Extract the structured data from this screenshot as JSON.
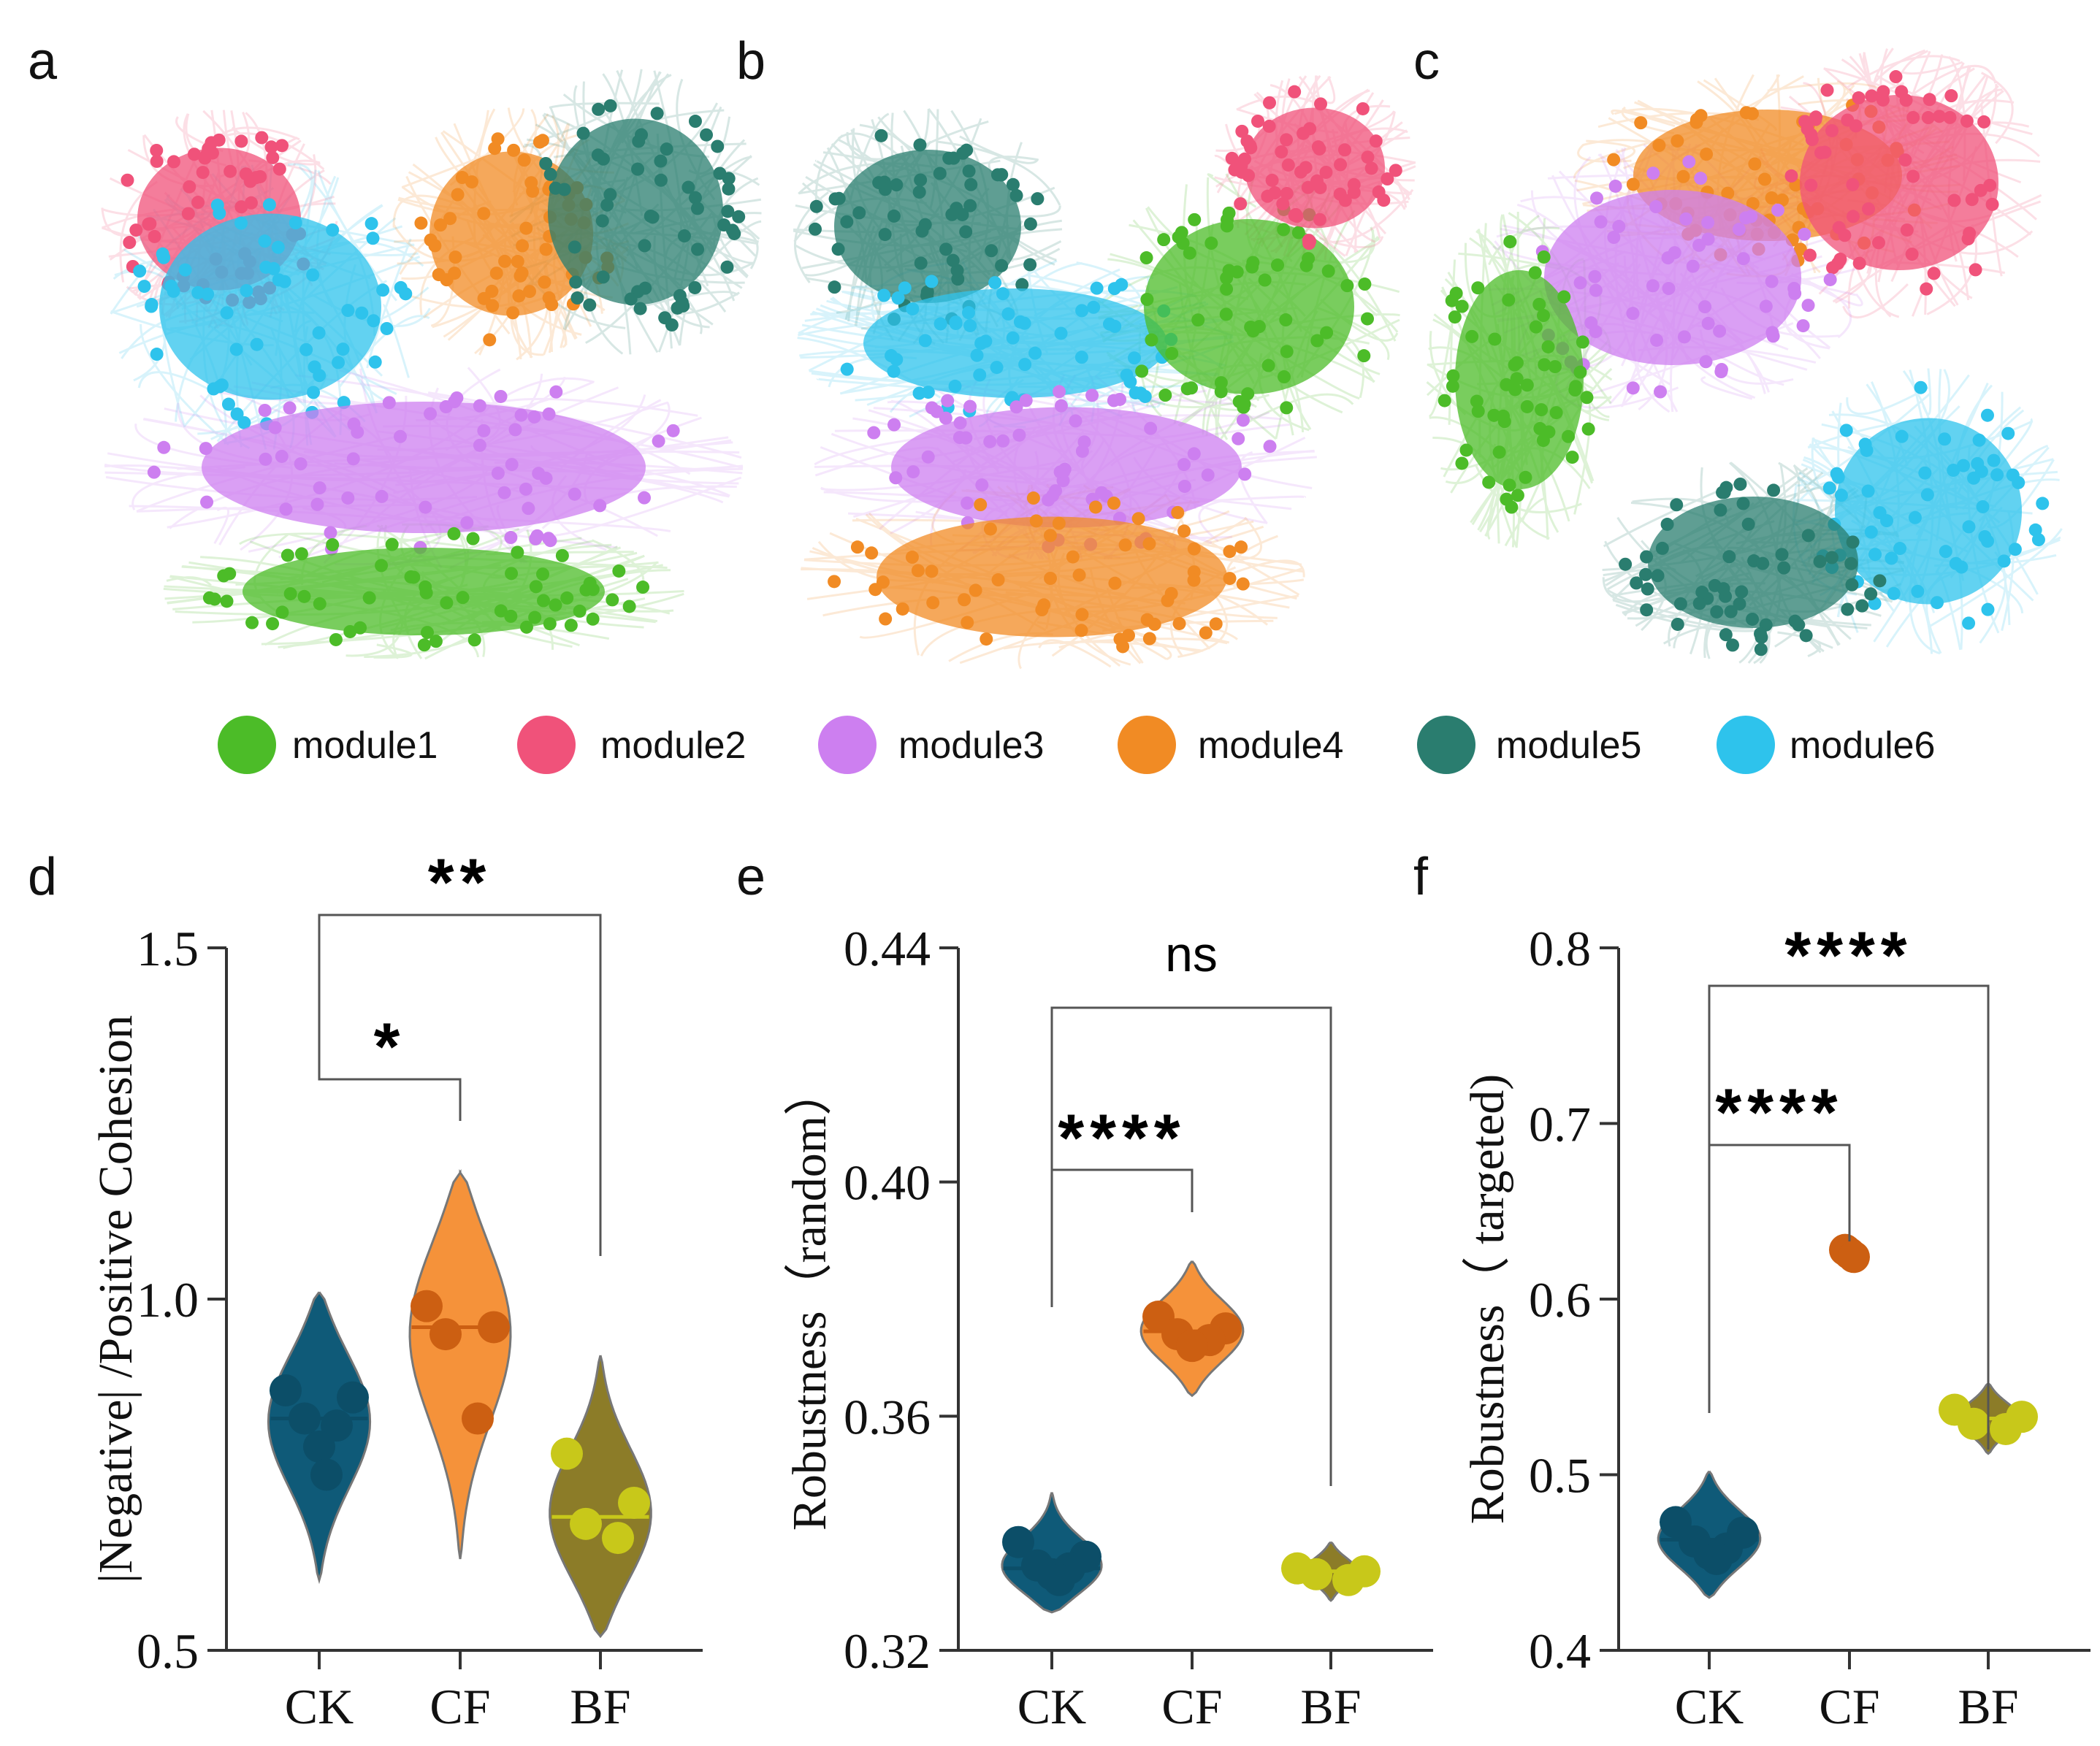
{
  "panel_labels": {
    "a": "a",
    "b": "b",
    "c": "c",
    "d": "d",
    "e": "e",
    "f": "f"
  },
  "colors": {
    "module1": "#4cbc28",
    "module2": "#f0527a",
    "module3": "#cd7ff0",
    "module4": "#f18b24",
    "module5": "#2a7d6f",
    "module6": "#2ec3ec",
    "CK": "#0f5a78",
    "CF": "#f5923a",
    "BF": "#8c7c28",
    "CK_point": "#0c4e68",
    "CF_point": "#cc5f12",
    "BF_point": "#c8c81a"
  },
  "legend": {
    "items": [
      {
        "label": "module1",
        "color": "#4cbc28"
      },
      {
        "label": "module2",
        "color": "#f0527a"
      },
      {
        "label": "module3",
        "color": "#cd7ff0"
      },
      {
        "label": "module4",
        "color": "#f18b24"
      },
      {
        "label": "module5",
        "color": "#2a7d6f"
      },
      {
        "label": "module6",
        "color": "#2ec3ec"
      }
    ]
  },
  "networks": [
    {
      "panel": "a",
      "modules": [
        "module2",
        "module6",
        "module4",
        "module5",
        "module3",
        "module1"
      ]
    },
    {
      "panel": "b",
      "modules": [
        "module5",
        "module6",
        "module1",
        "module2",
        "module3",
        "module4"
      ]
    },
    {
      "panel": "c",
      "modules": [
        "module4",
        "module2",
        "module3",
        "module1",
        "module6",
        "module5"
      ]
    }
  ],
  "chart_data": [
    {
      "panel": "d",
      "type": "violin",
      "categories": [
        "CK",
        "CF",
        "BF"
      ],
      "ylabel": "|Negative| /Positive Cohesion",
      "ylim": [
        0.5,
        1.5
      ],
      "yticks": [
        "0.5",
        "1.0",
        "1.5"
      ],
      "yticks_values": [
        0.5,
        1.0,
        1.5
      ],
      "series": [
        {
          "name": "CK",
          "points": [
            0.87,
            0.86,
            0.83,
            0.82,
            0.79,
            0.75
          ],
          "median": 0.83,
          "range": [
            0.6,
            1.01
          ]
        },
        {
          "name": "CF",
          "points": [
            0.99,
            0.96,
            0.95,
            0.83
          ],
          "median": 0.96,
          "range": [
            0.63,
            1.18
          ]
        },
        {
          "name": "BF",
          "points": [
            0.78,
            0.71,
            0.68,
            0.66
          ],
          "median": 0.69,
          "range": [
            0.52,
            0.92
          ]
        }
      ],
      "comparisons": [
        {
          "pair": [
            "CK",
            "CF"
          ],
          "label": "*"
        },
        {
          "pair": [
            "CK",
            "BF"
          ],
          "label": "**"
        }
      ]
    },
    {
      "panel": "e",
      "type": "violin",
      "categories": [
        "CK",
        "CF",
        "BF"
      ],
      "ylabel": "Robustness（random）",
      "ylim": [
        0.32,
        0.44
      ],
      "yticks": [
        "0.32",
        "0.36",
        "0.40",
        "0.44"
      ],
      "yticks_values": [
        0.32,
        0.36,
        0.4,
        0.44
      ],
      "series": [
        {
          "name": "CK",
          "points": [
            0.3385,
            0.336,
            0.3345,
            0.334,
            0.333,
            0.332
          ],
          "median": 0.334,
          "range": [
            0.3265,
            0.347
          ]
        },
        {
          "name": "CF",
          "points": [
            0.377,
            0.375,
            0.374,
            0.373,
            0.372
          ],
          "median": 0.3745,
          "range": [
            0.3635,
            0.3865
          ]
        },
        {
          "name": "BF",
          "points": [
            0.334,
            0.3335,
            0.333,
            0.332
          ],
          "median": 0.3335,
          "range": [
            0.3285,
            0.3385
          ]
        }
      ],
      "comparisons": [
        {
          "pair": [
            "CK",
            "CF"
          ],
          "label": "****"
        },
        {
          "pair": [
            "CK",
            "BF"
          ],
          "label": "ns"
        }
      ]
    },
    {
      "panel": "f",
      "type": "violin",
      "categories": [
        "CK",
        "CF",
        "BF"
      ],
      "ylabel": "Robustness（ targeted)",
      "ylim": [
        0.4,
        0.8
      ],
      "yticks": [
        "0.4",
        "0.5",
        "0.6",
        "0.7",
        "0.8"
      ],
      "yticks_values": [
        0.4,
        0.5,
        0.6,
        0.7,
        0.8
      ],
      "series": [
        {
          "name": "CK",
          "points": [
            0.473,
            0.467,
            0.462,
            0.458,
            0.455,
            0.452
          ],
          "median": 0.463,
          "range": [
            0.43,
            0.502
          ]
        },
        {
          "name": "CF",
          "points": [
            0.628,
            0.626,
            0.624
          ],
          "median": 0.627,
          "range": [
            0.622,
            0.632
          ]
        },
        {
          "name": "BF",
          "points": [
            0.537,
            0.533,
            0.529,
            0.526
          ],
          "median": 0.532,
          "range": [
            0.512,
            0.552
          ]
        }
      ],
      "comparisons": [
        {
          "pair": [
            "CK",
            "CF"
          ],
          "label": "****"
        },
        {
          "pair": [
            "CK",
            "BF"
          ],
          "label": "****"
        }
      ]
    }
  ]
}
